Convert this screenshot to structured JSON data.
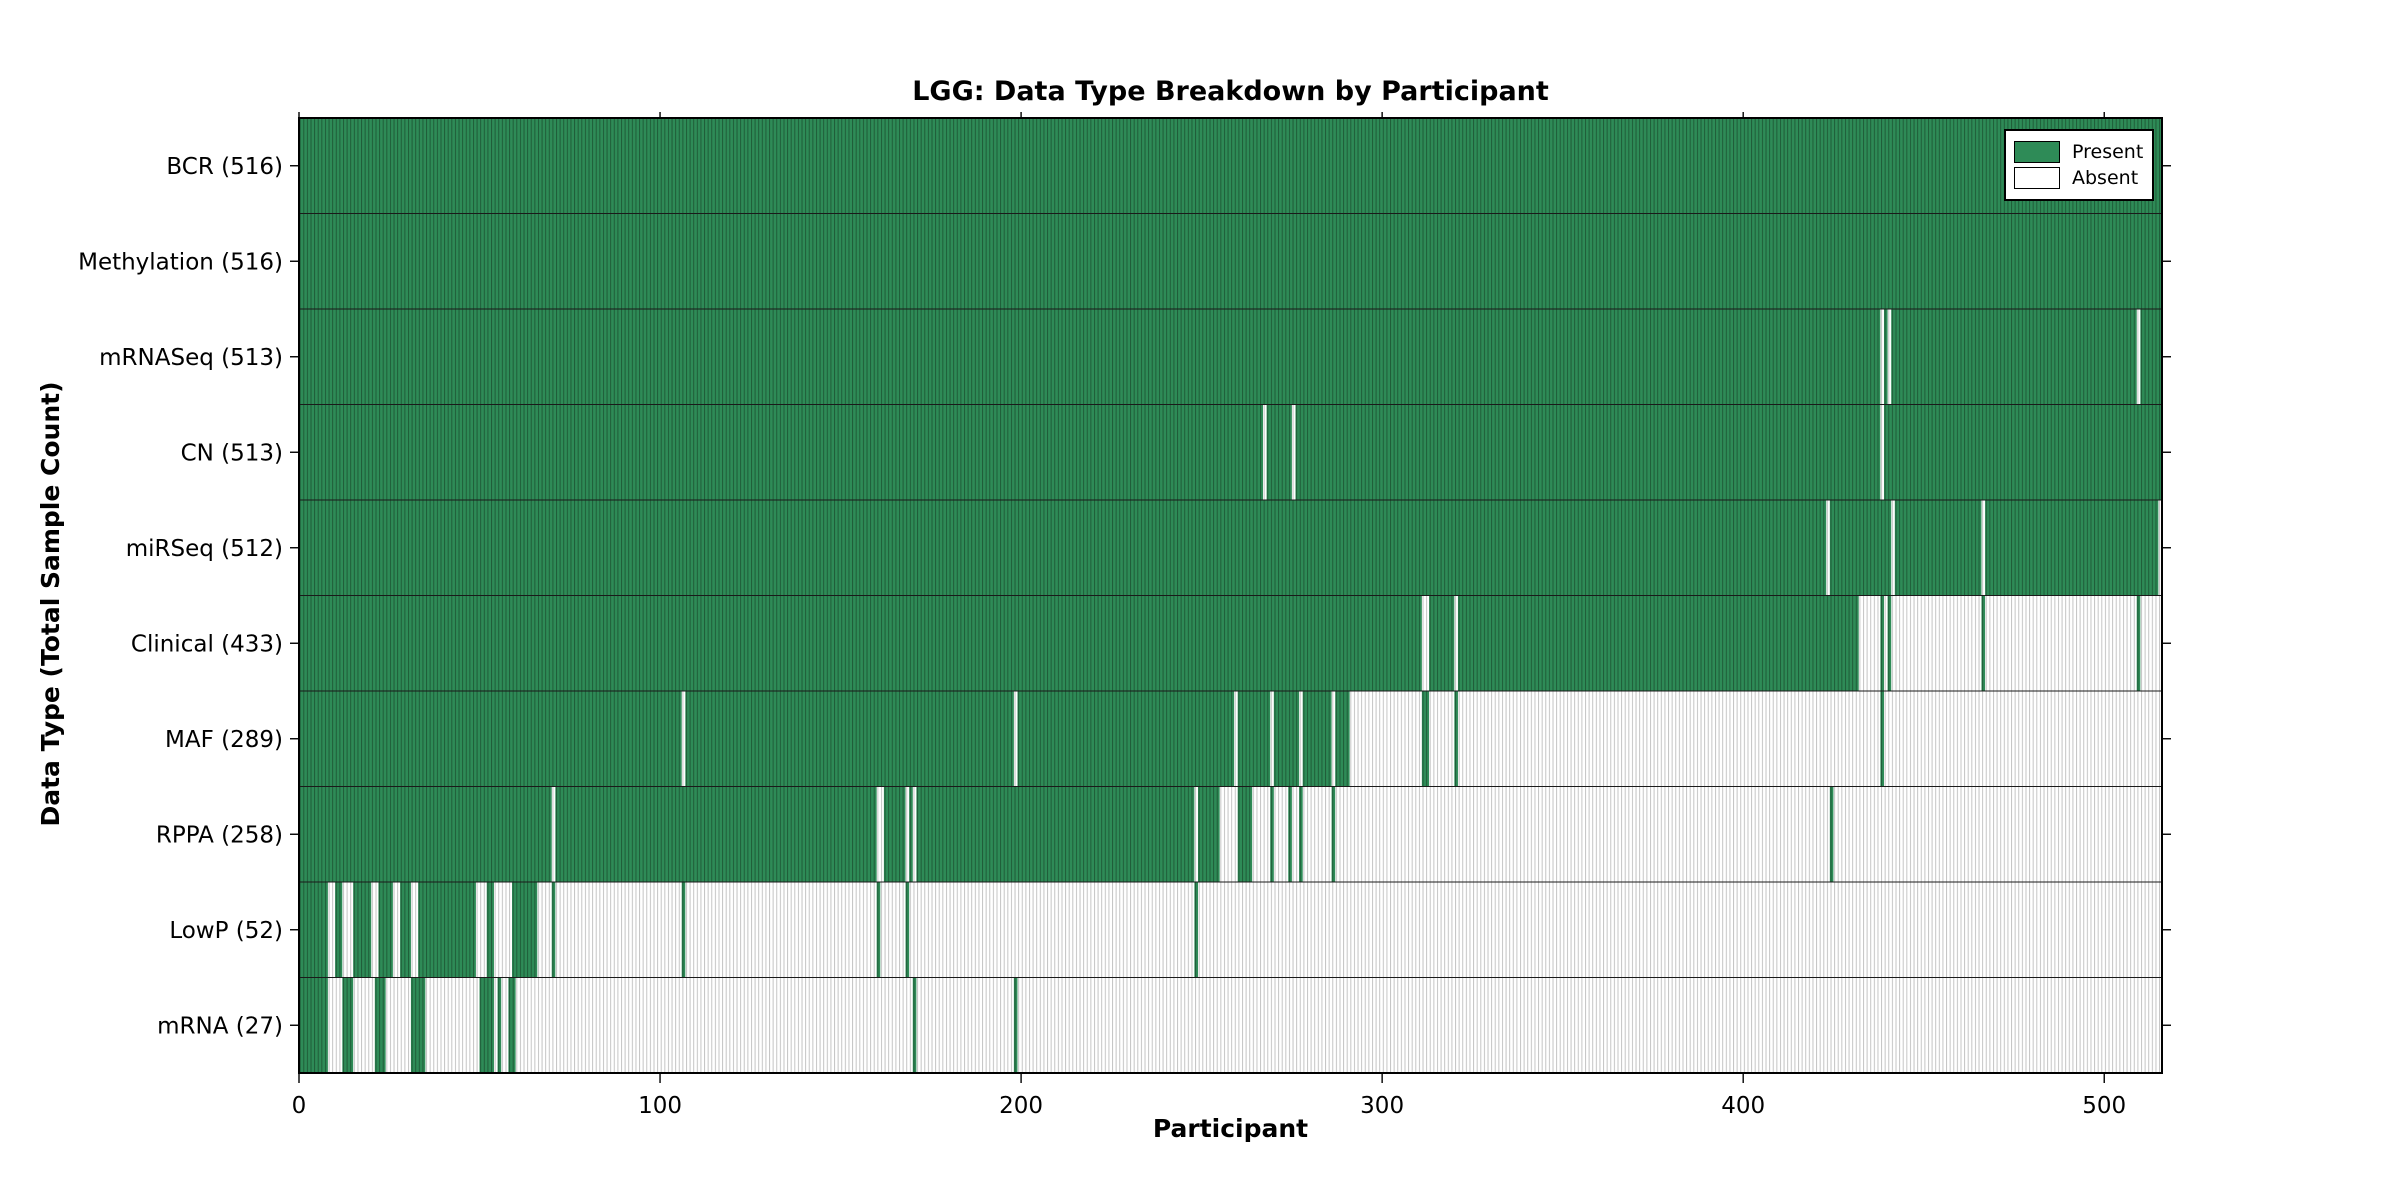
{
  "title": "LGG: Data Type Breakdown by Participant",
  "x_axis_label": "Participant",
  "y_axis_label": "Data Type (Total Sample Count)",
  "legend": {
    "present_label": "Present",
    "absent_label": "Absent"
  },
  "colors": {
    "present_fill": "#2e8b57",
    "present_edge": "#1f5c38",
    "absent_fill": "#ffffff",
    "absent_edge": "#c4c4c4",
    "axis": "#000000",
    "row_separator": "#1a1a1a",
    "text": "#000000"
  },
  "chart_data": {
    "type": "heatmap",
    "title": "LGG: Data Type Breakdown by Participant",
    "xlabel": "Participant",
    "ylabel": "Data Type (Total Sample Count)",
    "x_range": [
      0,
      516
    ],
    "x_ticks": [
      0,
      100,
      200,
      300,
      400,
      500
    ],
    "grid": false,
    "legend_entries": [
      "Present",
      "Absent"
    ],
    "legend_position": "upper right",
    "n_participants": 516,
    "rows": [
      {
        "label": "BCR (516)",
        "name": "BCR",
        "count": 516,
        "present_ranges": [
          [
            0,
            516
          ]
        ]
      },
      {
        "label": "Methylation (516)",
        "name": "Methylation",
        "count": 516,
        "present_ranges": [
          [
            0,
            516
          ]
        ]
      },
      {
        "label": "mRNASeq (513)",
        "name": "mRNASeq",
        "count": 513,
        "present_ranges": [
          [
            0,
            438
          ],
          [
            439,
            440
          ],
          [
            441,
            509
          ],
          [
            510,
            516
          ]
        ]
      },
      {
        "label": "CN (513)",
        "name": "CN",
        "count": 513,
        "present_ranges": [
          [
            0,
            267
          ],
          [
            268,
            275
          ],
          [
            276,
            438
          ],
          [
            439,
            516
          ]
        ]
      },
      {
        "label": "miRSeq (512)",
        "name": "miRSeq",
        "count": 512,
        "present_ranges": [
          [
            0,
            423
          ],
          [
            424,
            441
          ],
          [
            442,
            466
          ],
          [
            467,
            515
          ]
        ]
      },
      {
        "label": "Clinical (433)",
        "name": "Clinical",
        "count": 433,
        "present_ranges": [
          [
            0,
            311
          ],
          [
            313,
            320
          ],
          [
            321,
            432
          ],
          [
            438,
            439
          ],
          [
            440,
            441
          ],
          [
            466,
            467
          ],
          [
            509,
            510
          ]
        ]
      },
      {
        "label": "MAF (289)",
        "name": "MAF",
        "count": 289,
        "present_ranges": [
          [
            0,
            106
          ],
          [
            107,
            198
          ],
          [
            199,
            259
          ],
          [
            260,
            269
          ],
          [
            270,
            277
          ],
          [
            278,
            286
          ],
          [
            287,
            291
          ],
          [
            311,
            313
          ],
          [
            320,
            321
          ],
          [
            438,
            439
          ]
        ]
      },
      {
        "label": "RPPA (258)",
        "name": "RPPA",
        "count": 258,
        "present_ranges": [
          [
            0,
            70
          ],
          [
            71,
            160
          ],
          [
            162,
            168
          ],
          [
            169,
            170
          ],
          [
            171,
            248
          ],
          [
            249,
            255
          ],
          [
            260,
            264
          ],
          [
            269,
            270
          ],
          [
            274,
            275
          ],
          [
            277,
            278
          ],
          [
            286,
            287
          ],
          [
            424,
            425
          ]
        ]
      },
      {
        "label": "LowP (52)",
        "name": "LowP",
        "count": 52,
        "present_ranges": [
          [
            0,
            8
          ],
          [
            10,
            12
          ],
          [
            15,
            20
          ],
          [
            22,
            26
          ],
          [
            28,
            31
          ],
          [
            33,
            49
          ],
          [
            52,
            54
          ],
          [
            59,
            66
          ],
          [
            70,
            71
          ],
          [
            106,
            107
          ],
          [
            160,
            161
          ],
          [
            168,
            169
          ],
          [
            248,
            249
          ]
        ]
      },
      {
        "label": "mRNA (27)",
        "name": "mRNA",
        "count": 27,
        "present_ranges": [
          [
            0,
            8
          ],
          [
            12,
            15
          ],
          [
            21,
            24
          ],
          [
            31,
            35
          ],
          [
            50,
            54
          ],
          [
            55,
            56
          ],
          [
            58,
            60
          ],
          [
            170,
            171
          ],
          [
            198,
            199
          ]
        ]
      }
    ]
  }
}
